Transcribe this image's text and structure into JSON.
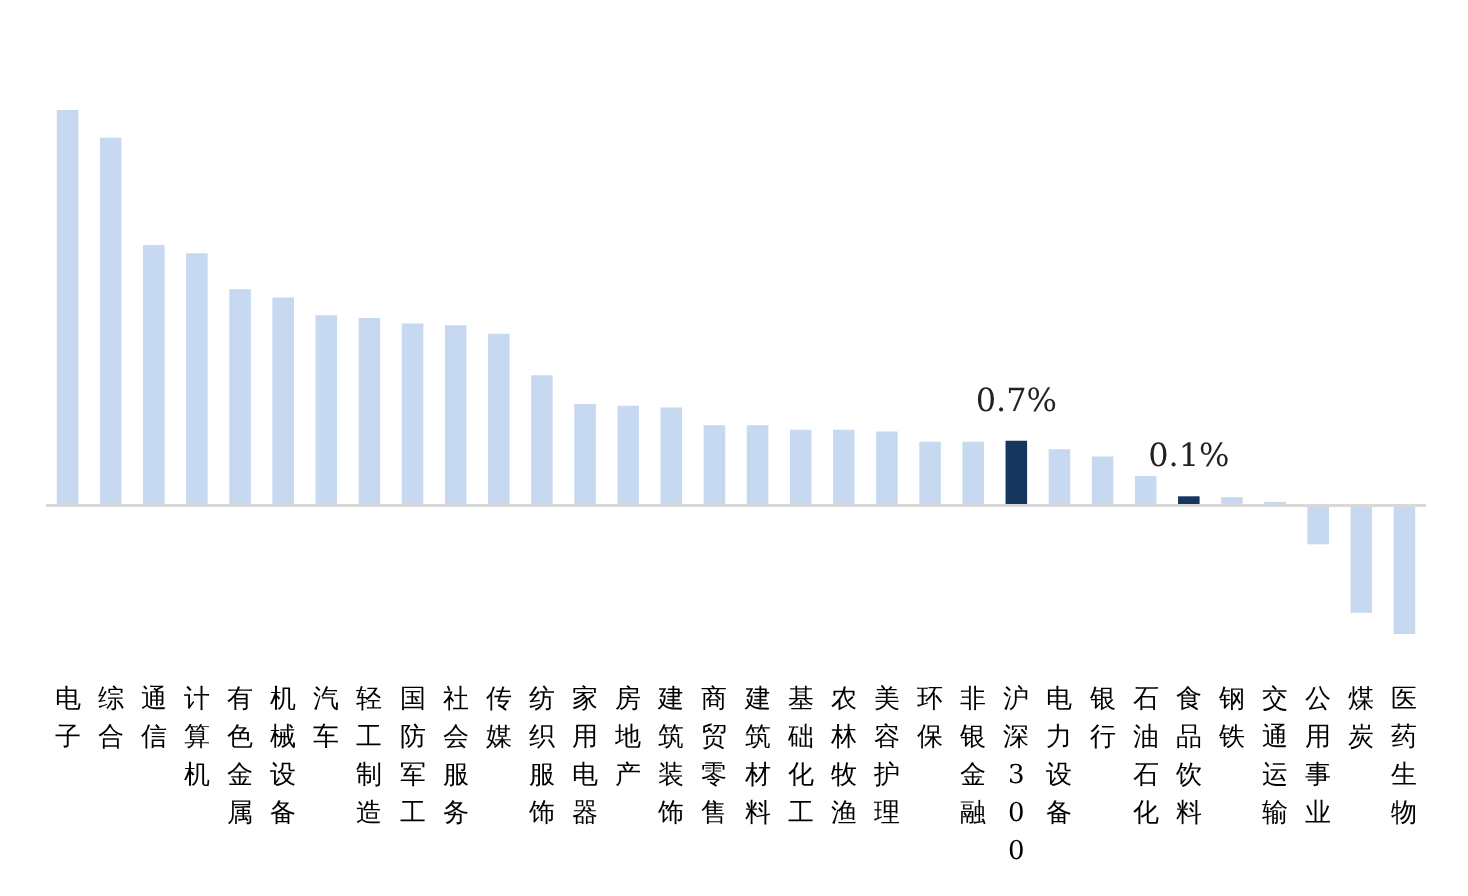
{
  "chart_data": {
    "type": "bar",
    "categories": [
      "电子",
      "综合",
      "通信",
      "计算机",
      "有色金属",
      "机械设备",
      "汽车",
      "轻工制造",
      "国防军工",
      "社会服务",
      "传媒",
      "纺织服饰",
      "家用电器",
      "房地产",
      "建筑装饰",
      "商贸零售",
      "建筑材料",
      "基础化工",
      "农林牧渔",
      "美容护理",
      "环保",
      "非银金融",
      "沪深300",
      "电力设备",
      "银行",
      "石油石化",
      "食品饮料",
      "钢铁",
      "交通运输",
      "公用事业",
      "煤炭",
      "医药生物"
    ],
    "values": [
      4.28,
      3.98,
      2.82,
      2.73,
      2.34,
      2.25,
      2.06,
      2.03,
      1.97,
      1.95,
      1.86,
      1.41,
      1.1,
      1.08,
      1.06,
      0.87,
      0.87,
      0.82,
      0.82,
      0.8,
      0.69,
      0.69,
      0.7,
      0.61,
      0.53,
      0.32,
      0.1,
      0.09,
      0.04,
      -0.42,
      -1.16,
      -1.39
    ],
    "colors": [
      "#c6d9f1",
      "#c6d9f1",
      "#c6d9f1",
      "#c6d9f1",
      "#c6d9f1",
      "#c6d9f1",
      "#c6d9f1",
      "#c6d9f1",
      "#c6d9f1",
      "#c6d9f1",
      "#c6d9f1",
      "#c6d9f1",
      "#c6d9f1",
      "#c6d9f1",
      "#c6d9f1",
      "#c6d9f1",
      "#c6d9f1",
      "#c6d9f1",
      "#c6d9f1",
      "#c6d9f1",
      "#c6d9f1",
      "#c6d9f1",
      "#17365d",
      "#c6d9f1",
      "#c6d9f1",
      "#c6d9f1",
      "#17365d",
      "#c6d9f1",
      "#c6d9f1",
      "#c6d9f1",
      "#c6d9f1",
      "#c6d9f1"
    ],
    "value_labels": [
      null,
      null,
      null,
      null,
      null,
      null,
      null,
      null,
      null,
      null,
      null,
      null,
      null,
      null,
      null,
      null,
      null,
      null,
      null,
      null,
      null,
      null,
      "0.7%",
      null,
      null,
      null,
      "0.1%",
      null,
      null,
      null,
      null,
      null
    ],
    "grid": false
  }
}
